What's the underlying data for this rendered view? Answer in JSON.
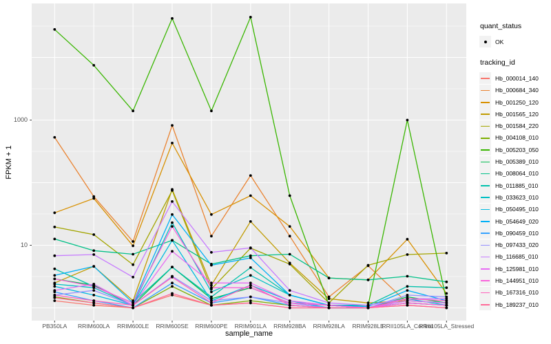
{
  "chart_data": {
    "type": "line",
    "title": "",
    "xlabel": "sample_name",
    "ylabel": "FPKM + 1",
    "y_scale": "log10",
    "ylim": [
      1,
      50000
    ],
    "grid": true,
    "y_ticks": [
      {
        "value": 1000,
        "label": "1000"
      },
      {
        "value": 10,
        "label": "10"
      }
    ],
    "gridlines_major": [
      1,
      10,
      100,
      1000,
      10000
    ],
    "gridlines_minor": [
      3.162,
      31.62,
      316.2,
      3162,
      31620
    ],
    "categories": [
      "PB350LA",
      "RRIM600LA",
      "RRIM600LE",
      "RRIM600SE",
      "RRIM600PE",
      "RRIM901LA",
      "RRIM928BA",
      "RRIM928LA",
      "RRIM928LE",
      "RRII105LA_Control",
      "RRII105LA_Stressed"
    ],
    "legend_position": "right",
    "legend": {
      "quant_status_title": "quant_status",
      "quant_status_entries": [
        "OK"
      ],
      "tracking_id_title": "tracking_id"
    },
    "point_shape": "filled-circle",
    "series": [
      {
        "name": "Hb_000014_140",
        "color": "#F8766D",
        "values": [
          1.3,
          1.1,
          1.0,
          1.6,
          1.1,
          1.2,
          1.0,
          1.0,
          1.0,
          1.1,
          1.0
        ]
      },
      {
        "name": "Hb_000684_340",
        "color": "#EA8331",
        "values": [
          530,
          60,
          11.5,
          820,
          14,
          130,
          14,
          1.5,
          4.7,
          1.2,
          1.1
        ]
      },
      {
        "name": "Hb_001250_120",
        "color": "#D89000",
        "values": [
          33,
          56,
          9.8,
          430,
          31,
          62,
          20,
          3.0,
          2.8,
          12.5,
          1.7
        ]
      },
      {
        "name": "Hb_001565_120",
        "color": "#C09B00",
        "values": [
          2.5,
          4.6,
          1.3,
          78,
          2.3,
          24,
          5.2,
          1.4,
          1.2,
          1.3,
          1.2
        ]
      },
      {
        "name": "Hb_001584_220",
        "color": "#A3A500",
        "values": [
          19.6,
          14.8,
          4.9,
          75,
          2.0,
          9.0,
          5.0,
          1.2,
          4.8,
          7.1,
          7.5
        ]
      },
      {
        "name": "Hb_004108_010",
        "color": "#7CAE00",
        "values": [
          1.5,
          1.2,
          1.0,
          2.2,
          1.1,
          1.3,
          1.1,
          1.0,
          1.0,
          1.2,
          1.1
        ]
      },
      {
        "name": "Hb_005203_050",
        "color": "#39B600",
        "values": [
          28000,
          7500,
          1400,
          42000,
          1400,
          44000,
          62,
          1.1,
          1.1,
          1000,
          1.3
        ]
      },
      {
        "name": "Hb_005389_010",
        "color": "#00BB4E",
        "values": [
          2.9,
          2.3,
          1.1,
          4.5,
          1.4,
          2.1,
          1.2,
          1.1,
          1.0,
          1.5,
          1.2
        ]
      },
      {
        "name": "Hb_008064_010",
        "color": "#00C087",
        "values": [
          12.6,
          8.2,
          7.2,
          12,
          5.0,
          6.8,
          7.2,
          3.0,
          2.8,
          3.2,
          2.6
        ]
      },
      {
        "name": "Hb_011885_010",
        "color": "#00C1AB",
        "values": [
          4.2,
          2.2,
          1.2,
          4.5,
          1.5,
          4.4,
          1.6,
          1.1,
          1.1,
          2.2,
          2.1
        ]
      },
      {
        "name": "Hb_033623_010",
        "color": "#00BFC4",
        "values": [
          2.4,
          2.1,
          1.1,
          23,
          1.8,
          3.3,
          1.6,
          1.1,
          1.0,
          1.3,
          1.2
        ]
      },
      {
        "name": "Hb_050495_010",
        "color": "#00BAE0",
        "values": [
          2.2,
          1.6,
          1.1,
          12,
          1.3,
          2.3,
          1.3,
          1.0,
          1.0,
          1.4,
          1.1
        ]
      },
      {
        "name": "Hb_054649_020",
        "color": "#00B0F6",
        "values": [
          3.3,
          4.6,
          1.2,
          31,
          4.8,
          6.3,
          1.6,
          1.1,
          1.05,
          1.9,
          1.3
        ]
      },
      {
        "name": "Hb_090459_010",
        "color": "#35A2FF",
        "values": [
          1.8,
          1.3,
          1.0,
          2.5,
          1.2,
          1.5,
          1.1,
          1.0,
          1.0,
          1.2,
          1.1
        ]
      },
      {
        "name": "Hb_097433_020",
        "color": "#9590FF",
        "values": [
          1.6,
          1.9,
          1.1,
          3.2,
          1.3,
          1.5,
          1.2,
          1.0,
          1.0,
          1.6,
          1.5
        ]
      },
      {
        "name": "Hb_116685_010",
        "color": "#C77CFF",
        "values": [
          6.8,
          7.1,
          3.1,
          50,
          7.7,
          9.1,
          1.9,
          1.2,
          1.1,
          1.4,
          1.4
        ]
      },
      {
        "name": "Hb_125981_010",
        "color": "#E76BF3",
        "values": [
          1.9,
          2.4,
          1.1,
          8.0,
          2.5,
          2.5,
          1.3,
          1.1,
          1.0,
          1.3,
          1.2
        ]
      },
      {
        "name": "Hb_144951_010",
        "color": "#FA62DB",
        "values": [
          2.9,
          2.2,
          1.2,
          20,
          2.1,
          2.1,
          1.2,
          1.1,
          1.0,
          1.2,
          1.1
        ]
      },
      {
        "name": "Hb_167316_010",
        "color": "#FF62BC",
        "values": [
          1.6,
          1.3,
          1.1,
          3.1,
          1.2,
          2.3,
          1.1,
          1.0,
          1.0,
          1.4,
          1.3
        ]
      },
      {
        "name": "Hb_189237_010",
        "color": "#FF6A98",
        "values": [
          1.45,
          1.2,
          1.0,
          1.7,
          1.1,
          1.2,
          1.0,
          1.0,
          1.0,
          1.1,
          1.0
        ]
      }
    ]
  },
  "plot_colors": {
    "panel_bg": "#EBEBEB",
    "grid": "#FFFFFF",
    "tick_mark": "#333333",
    "tick_text": "#4D4D4D",
    "axis_text": "#000000",
    "point": "#000000",
    "legend_key_bg": "#F2F2F2"
  }
}
